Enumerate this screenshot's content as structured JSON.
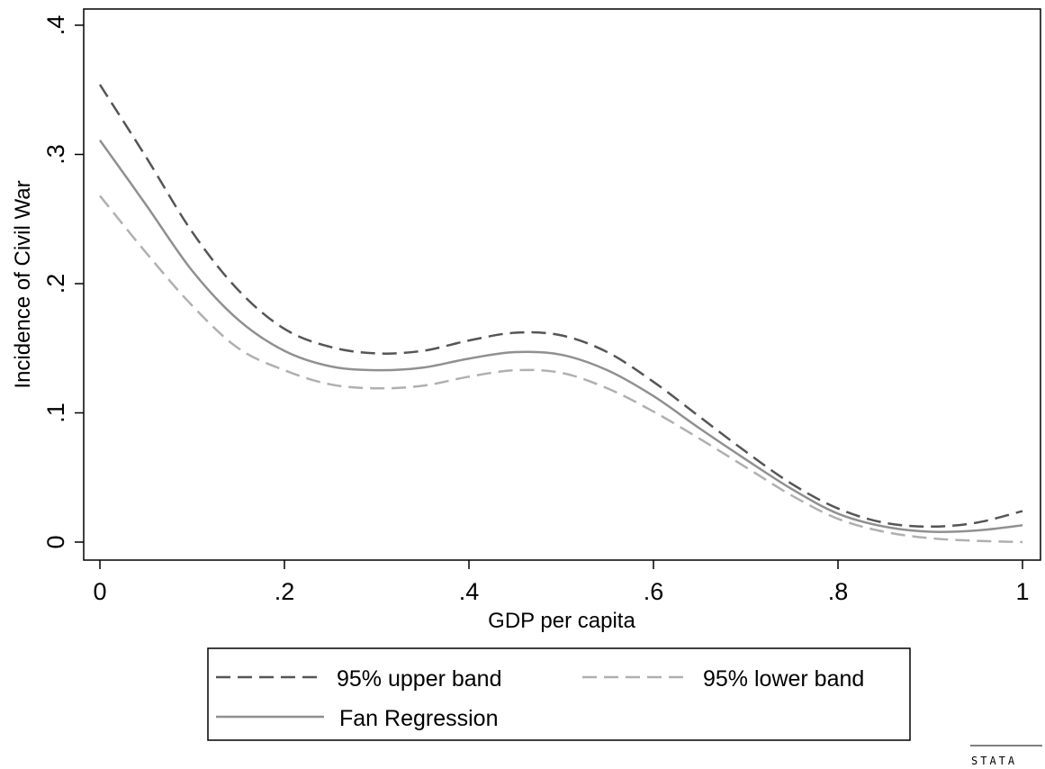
{
  "chart_data": {
    "type": "line",
    "title": "",
    "xlabel": "GDP per capita",
    "ylabel": "Incidence of Civil War",
    "xlim": [
      0,
      1
    ],
    "ylim": [
      0,
      0.4
    ],
    "x_ticks": [
      0,
      0.2,
      0.4,
      0.6,
      0.8,
      1
    ],
    "x_tick_labels": [
      "0",
      ".2",
      ".4",
      ".6",
      ".8",
      "1"
    ],
    "y_ticks": [
      0,
      0.1,
      0.2,
      0.3,
      0.4
    ],
    "y_tick_labels": [
      "0",
      ".1",
      ".2",
      ".3",
      ".4"
    ],
    "grid": false,
    "legend_position": "bottom",
    "x": [
      0,
      0.05,
      0.1,
      0.15,
      0.2,
      0.25,
      0.3,
      0.35,
      0.4,
      0.45,
      0.5,
      0.55,
      0.6,
      0.65,
      0.7,
      0.75,
      0.8,
      0.85,
      0.9,
      0.95,
      1
    ],
    "series": [
      {
        "name": "95% upper band",
        "color": "#555555",
        "dash": "dashed",
        "values": [
          0.354,
          0.298,
          0.24,
          0.195,
          0.165,
          0.151,
          0.146,
          0.148,
          0.156,
          0.162,
          0.16,
          0.147,
          0.124,
          0.097,
          0.07,
          0.045,
          0.026,
          0.015,
          0.012,
          0.015,
          0.024
        ]
      },
      {
        "name": "95% lower band",
        "color": "#b0b0b0",
        "dash": "dashed",
        "values": [
          0.268,
          0.224,
          0.183,
          0.15,
          0.133,
          0.122,
          0.119,
          0.121,
          0.128,
          0.133,
          0.131,
          0.119,
          0.101,
          0.08,
          0.058,
          0.036,
          0.018,
          0.008,
          0.003,
          0.001,
          0.0
        ]
      },
      {
        "name": "Fan Regression",
        "color": "#909090",
        "dash": "solid",
        "values": [
          0.311,
          0.261,
          0.21,
          0.172,
          0.148,
          0.136,
          0.133,
          0.135,
          0.142,
          0.147,
          0.145,
          0.133,
          0.113,
          0.088,
          0.064,
          0.041,
          0.022,
          0.012,
          0.008,
          0.009,
          0.013
        ]
      }
    ]
  },
  "watermark": "STATA"
}
